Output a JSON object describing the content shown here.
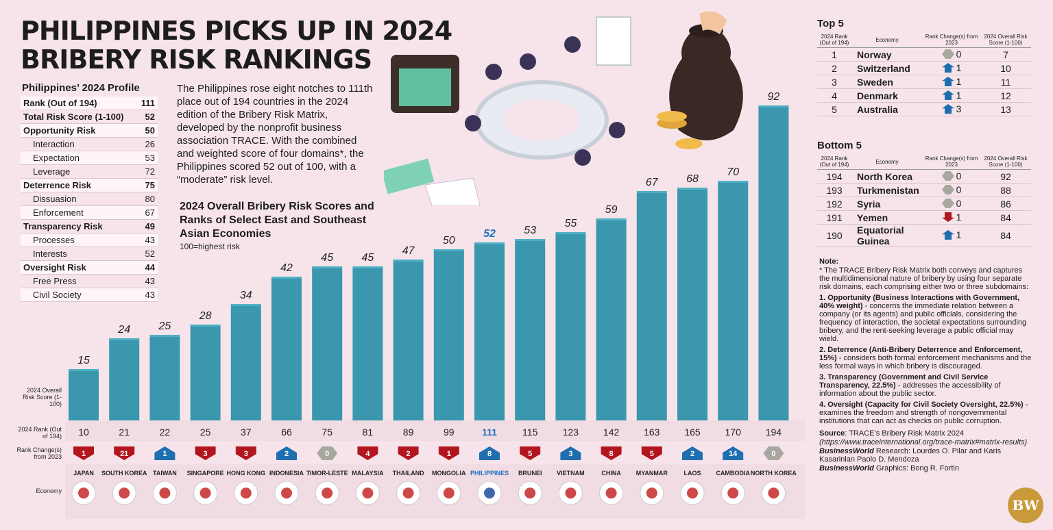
{
  "title_line1": "PHILIPPINES PICKS UP IN 2024",
  "title_line2": "BRIBERY RISK RANKINGS",
  "profile": {
    "heading": "Philippines’ 2024 Profile",
    "rows": [
      {
        "label": "Rank (Out of 194)",
        "value": "111",
        "main": true
      },
      {
        "label": "Total Risk Score (1-100)",
        "value": "52",
        "main": true
      },
      {
        "label": "Opportunity Risk",
        "value": "50",
        "main": true
      },
      {
        "label": "Interaction",
        "value": "26",
        "main": false
      },
      {
        "label": "Expectation",
        "value": "53",
        "main": false
      },
      {
        "label": "Leverage",
        "value": "72",
        "main": false
      },
      {
        "label": "Deterrence Risk",
        "value": "75",
        "main": true
      },
      {
        "label": "Dissuasion",
        "value": "80",
        "main": false
      },
      {
        "label": "Enforcement",
        "value": "67",
        "main": false
      },
      {
        "label": "Transparency Risk",
        "value": "49",
        "main": true
      },
      {
        "label": "Processes",
        "value": "43",
        "main": false
      },
      {
        "label": "Interests",
        "value": "52",
        "main": false
      },
      {
        "label": "Oversight Risk",
        "value": "44",
        "main": true
      },
      {
        "label": "Free Press",
        "value": "43",
        "main": false
      },
      {
        "label": "Civil Society",
        "value": "43",
        "main": false
      }
    ]
  },
  "intro_text": "The Philippines rose eight notches to 111th place out of 194 countries in the 2024 edition of the Bribery Risk Matrix, developed by the nonprofit business association TRACE. With the combined and weighted score of four domains*, the Philippines scored 52 out of 100, with a “moderate” risk level.",
  "row_labels": {
    "score": "2024 Overall Risk Score (1-100)",
    "rank": "2024 Rank (Out of 194)",
    "change": "Rank Change(s) from 2023",
    "economy": "Economy"
  },
  "colors": {
    "bar": "#3a97ad",
    "bar_top": "#4fb0c4",
    "down": "#b3151e",
    "up": "#1f6fb0",
    "same": "#a8a8a0",
    "highlight": "#1e6fc0"
  },
  "chart_data": {
    "type": "bar",
    "title": "2024 Overall Bribery Risk Scores and Ranks of Select East and Southeast Asian Economies",
    "subtitle": "100=highest risk",
    "ylim": [
      0,
      100
    ],
    "highlight": "PHILIPPINES",
    "categories": [
      "JAPAN",
      "SOUTH KOREA",
      "TAIWAN",
      "SINGAPORE",
      "HONG KONG",
      "INDONESIA",
      "TIMOR-LESTE",
      "MALAYSIA",
      "THAILAND",
      "MONGOLIA",
      "PHILIPPINES",
      "BRUNEI",
      "VIETNAM",
      "CHINA",
      "MYANMAR",
      "LAOS",
      "CAMBODIA",
      "NORTH KOREA"
    ],
    "values": [
      15,
      24,
      25,
      28,
      34,
      42,
      45,
      45,
      47,
      50,
      52,
      53,
      55,
      59,
      67,
      68,
      70,
      92
    ],
    "ranks": [
      10,
      21,
      22,
      25,
      37,
      66,
      75,
      81,
      89,
      99,
      111,
      115,
      123,
      142,
      163,
      165,
      170,
      194
    ],
    "rank_change": [
      {
        "value": "1",
        "dir": "down"
      },
      {
        "value": "21",
        "dir": "down"
      },
      {
        "value": "1",
        "dir": "up"
      },
      {
        "value": "3",
        "dir": "down"
      },
      {
        "value": "3",
        "dir": "down"
      },
      {
        "value": "2",
        "dir": "up"
      },
      {
        "value": "0",
        "dir": "same"
      },
      {
        "value": "4",
        "dir": "down"
      },
      {
        "value": "2",
        "dir": "down"
      },
      {
        "value": "1",
        "dir": "down"
      },
      {
        "value": "8",
        "dir": "up"
      },
      {
        "value": "5",
        "dir": "down"
      },
      {
        "value": "3",
        "dir": "up"
      },
      {
        "value": "8",
        "dir": "down"
      },
      {
        "value": "5",
        "dir": "down"
      },
      {
        "value": "2",
        "dir": "up"
      },
      {
        "value": "14",
        "dir": "up"
      },
      {
        "value": "0",
        "dir": "same"
      }
    ]
  },
  "top5": {
    "heading": "Top 5",
    "headers": [
      "2024 Rank (Out of 194)",
      "Economy",
      "Rank Change(s) from 2023",
      "2024 Overall Risk Score (1-100)"
    ],
    "rows": [
      {
        "rank": "1",
        "economy": "Norway",
        "change": "0",
        "dir": "same",
        "score": "7"
      },
      {
        "rank": "2",
        "economy": "Switzerland",
        "change": "1",
        "dir": "up",
        "score": "10"
      },
      {
        "rank": "3",
        "economy": "Sweden",
        "change": "1",
        "dir": "up",
        "score": "11"
      },
      {
        "rank": "4",
        "economy": "Denmark",
        "change": "1",
        "dir": "up",
        "score": "12"
      },
      {
        "rank": "5",
        "economy": "Australia",
        "change": "3",
        "dir": "up",
        "score": "13"
      }
    ]
  },
  "bottom5": {
    "heading": "Bottom 5",
    "headers": [
      "2024 Rank (Out of 194)",
      "Economy",
      "Rank Change(s) from 2023",
      "2024 Overall Risk Score (1-100)"
    ],
    "rows": [
      {
        "rank": "194",
        "economy": "North Korea",
        "change": "0",
        "dir": "same",
        "score": "92"
      },
      {
        "rank": "193",
        "economy": "Turkmenistan",
        "change": "0",
        "dir": "same",
        "score": "88"
      },
      {
        "rank": "192",
        "economy": "Syria",
        "change": "0",
        "dir": "same",
        "score": "86"
      },
      {
        "rank": "191",
        "economy": "Yemen",
        "change": "1",
        "dir": "down",
        "score": "84"
      },
      {
        "rank": "190",
        "economy": "Equatorial Guinea",
        "change": "1",
        "dir": "up",
        "score": "84"
      }
    ]
  },
  "note": {
    "heading": "Note:",
    "intro": "* The TRACE Bribery Risk Matrix both conveys and captures the multidimensional nature of bribery by using four separate risk domains, each comprising either two or three subdomains:",
    "items": [
      {
        "bold": "1. Opportunity (Business Interactions with Government, 40% weight)",
        "text": " - concerns the immediate relation between a company (or its agents) and public officials, considering the frequency of interaction, the societal expectations surrounding bribery, and the rent-seeking leverage a public official may wield."
      },
      {
        "bold": "2. Deterrence (Anti-Bribery Deterrence and Enforcement, 15%)",
        "text": " - considers both formal enforcement mechanisms and the less formal ways in which bribery is discouraged."
      },
      {
        "bold": "3. Transparency (Government and Civil Service Transparency, 22.5%)",
        "text": " - addresses the accessibility of information about the public sector."
      },
      {
        "bold": "4. Oversight (Capacity for Civil Society Oversight, 22.5%)",
        "text": " - examines the freedom and strength of nongovernmental institutions that can act as checks on public corruption."
      }
    ]
  },
  "source": {
    "label": "Source",
    "text": ": TRACE’s Bribery Risk Matrix 2024",
    "url": "(https://www.traceinternational.org/trace-matrix#matrix-results)",
    "research_label": "BusinessWorld",
    "research_text": " Research: Lourdes O. Pilar and Karis Kasarinlan Paolo D. Mendoza",
    "graphics_label": "BusinessWorld",
    "graphics_text": " Graphics: Bong R. Fortin"
  },
  "logo_text": "BW"
}
